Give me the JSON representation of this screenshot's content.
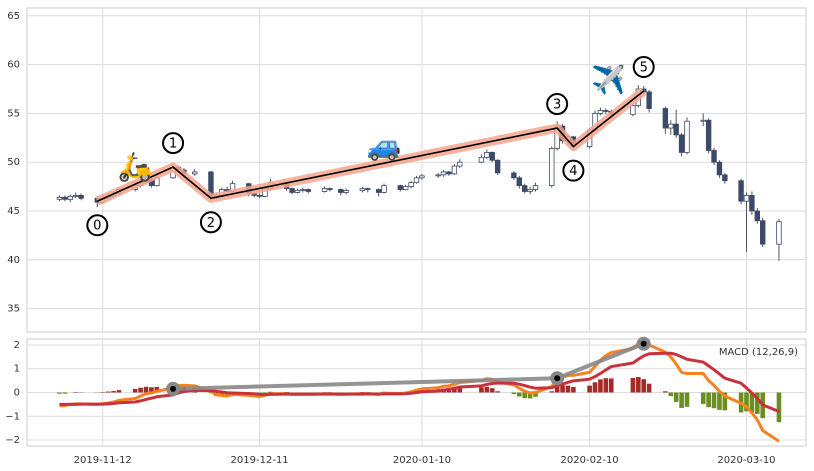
{
  "chart_data": [
    {
      "type": "candlestick",
      "x": [
        "2019-11-04",
        "2019-11-05",
        "2019-11-06",
        "2019-11-07",
        "2019-11-08",
        "2019-11-11",
        "2019-11-12",
        "2019-11-13",
        "2019-11-14",
        "2019-11-15",
        "2019-11-18",
        "2019-11-19",
        "2019-11-20",
        "2019-11-21",
        "2019-11-22",
        "2019-11-25",
        "2019-11-26",
        "2019-11-27",
        "2019-11-29",
        "2019-12-02",
        "2019-12-03",
        "2019-12-04",
        "2019-12-05",
        "2019-12-06",
        "2019-12-09",
        "2019-12-10",
        "2019-12-11",
        "2019-12-12",
        "2019-12-13",
        "2019-12-16",
        "2019-12-17",
        "2019-12-18",
        "2019-12-19",
        "2019-12-20",
        "2019-12-23",
        "2019-12-24",
        "2019-12-26",
        "2019-12-27",
        "2019-12-30",
        "2019-12-31",
        "2020-01-02",
        "2020-01-03",
        "2020-01-06",
        "2020-01-07",
        "2020-01-08",
        "2020-01-09",
        "2020-01-10",
        "2020-01-13",
        "2020-01-14",
        "2020-01-15",
        "2020-01-16",
        "2020-01-17",
        "2020-01-21",
        "2020-01-22",
        "2020-01-23",
        "2020-01-24",
        "2020-01-27",
        "2020-01-28",
        "2020-01-29",
        "2020-01-30",
        "2020-01-31",
        "2020-02-03",
        "2020-02-04",
        "2020-02-05",
        "2020-02-06",
        "2020-02-07",
        "2020-02-10",
        "2020-02-11",
        "2020-02-12",
        "2020-02-13",
        "2020-02-14",
        "2020-02-18",
        "2020-02-19",
        "2020-02-20",
        "2020-02-21",
        "2020-02-24",
        "2020-02-25",
        "2020-02-26",
        "2020-02-27",
        "2020-02-28",
        "2020-03-02",
        "2020-03-03",
        "2020-03-04",
        "2020-03-05",
        "2020-03-06",
        "2020-03-09",
        "2020-03-10",
        "2020-03-11",
        "2020-03-12",
        "2020-03-13",
        "2020-03-16"
      ],
      "ohlc": [
        [
          46.2,
          46.6,
          46.0,
          46.4
        ],
        [
          46.4,
          46.6,
          46.0,
          46.2
        ],
        [
          46.2,
          46.7,
          45.9,
          46.5
        ],
        [
          46.5,
          46.9,
          46.3,
          46.6
        ],
        [
          46.6,
          46.8,
          46.1,
          46.3
        ],
        [
          46.3,
          46.5,
          45.4,
          45.9
        ],
        [
          45.9,
          46.6,
          45.7,
          46.3
        ],
        [
          46.3,
          46.8,
          46.2,
          46.5
        ],
        [
          46.5,
          47.0,
          46.3,
          46.8
        ],
        [
          46.8,
          47.4,
          46.6,
          47.2
        ],
        [
          47.2,
          47.8,
          47.0,
          47.6
        ],
        [
          47.6,
          48.3,
          47.4,
          47.9
        ],
        [
          47.9,
          48.5,
          47.7,
          48.2
        ],
        [
          48.2,
          48.4,
          47.4,
          47.6
        ],
        [
          47.6,
          48.6,
          47.5,
          48.4
        ],
        [
          48.4,
          49.8,
          48.3,
          49.5
        ],
        [
          49.5,
          49.6,
          48.9,
          49.2
        ],
        [
          49.2,
          49.4,
          48.5,
          48.8
        ],
        [
          48.8,
          49.3,
          48.6,
          49.0
        ],
        [
          49.0,
          49.1,
          46.1,
          46.4
        ],
        [
          46.4,
          46.9,
          46.2,
          46.6
        ],
        [
          46.6,
          47.4,
          46.4,
          47.2
        ],
        [
          47.2,
          47.5,
          46.8,
          47.0
        ],
        [
          47.0,
          48.1,
          46.9,
          47.8
        ],
        [
          47.8,
          47.9,
          46.5,
          46.8
        ],
        [
          46.8,
          47.0,
          46.4,
          46.6
        ],
        [
          46.6,
          46.8,
          46.3,
          46.5
        ],
        [
          46.5,
          47.6,
          46.4,
          47.3
        ],
        [
          47.3,
          48.3,
          47.1,
          47.9
        ],
        [
          47.9,
          48.0,
          47.1,
          47.3
        ],
        [
          47.3,
          47.4,
          46.7,
          46.9
        ],
        [
          46.9,
          47.3,
          46.8,
          47.1
        ],
        [
          47.1,
          47.4,
          46.9,
          47.2
        ],
        [
          47.2,
          47.3,
          46.8,
          47.0
        ],
        [
          47.0,
          47.5,
          46.9,
          47.3
        ],
        [
          47.3,
          47.4,
          47.0,
          47.2
        ],
        [
          47.2,
          47.3,
          46.6,
          46.9
        ],
        [
          46.9,
          47.3,
          46.7,
          47.1
        ],
        [
          47.1,
          47.5,
          46.9,
          47.3
        ],
        [
          47.3,
          47.4,
          46.9,
          47.2
        ],
        [
          47.2,
          47.3,
          46.5,
          46.9
        ],
        [
          46.9,
          47.8,
          46.8,
          47.6
        ],
        [
          47.6,
          47.7,
          47.0,
          47.2
        ],
        [
          47.2,
          47.7,
          47.1,
          47.5
        ],
        [
          47.5,
          48.1,
          47.3,
          47.9
        ],
        [
          47.9,
          48.6,
          47.8,
          48.4
        ],
        [
          48.4,
          48.8,
          48.2,
          48.6
        ],
        [
          48.6,
          48.9,
          48.4,
          48.7
        ],
        [
          48.7,
          49.2,
          48.5,
          49.0
        ],
        [
          49.0,
          49.1,
          48.6,
          48.8
        ],
        [
          48.8,
          49.8,
          48.7,
          49.6
        ],
        [
          49.6,
          50.3,
          49.4,
          50.0
        ],
        [
          50.0,
          50.8,
          49.9,
          50.5
        ],
        [
          50.5,
          51.3,
          50.3,
          51.0
        ],
        [
          51.0,
          51.1,
          50.0,
          50.2
        ],
        [
          50.2,
          50.3,
          48.7,
          48.9
        ],
        [
          48.9,
          49.1,
          48.2,
          48.4
        ],
        [
          48.4,
          48.6,
          47.3,
          47.6
        ],
        [
          47.6,
          47.8,
          46.8,
          47.0
        ],
        [
          47.0,
          47.5,
          46.7,
          47.2
        ],
        [
          47.2,
          47.9,
          47.0,
          47.6
        ],
        [
          47.6,
          51.6,
          47.4,
          51.4
        ],
        [
          51.4,
          54.2,
          51.2,
          53.7
        ],
        [
          53.7,
          53.9,
          51.9,
          52.2
        ],
        [
          52.2,
          52.9,
          51.8,
          52.6
        ],
        [
          52.6,
          52.7,
          51.3,
          51.6
        ],
        [
          51.6,
          53.5,
          51.4,
          53.3
        ],
        [
          53.3,
          55.3,
          53.1,
          55.0
        ],
        [
          55.0,
          55.6,
          54.8,
          55.3
        ],
        [
          55.3,
          55.5,
          54.9,
          55.2
        ],
        [
          55.2,
          55.4,
          54.6,
          54.9
        ],
        [
          54.9,
          56.0,
          54.7,
          55.8
        ],
        [
          55.8,
          57.9,
          55.6,
          57.5
        ],
        [
          57.5,
          57.8,
          56.9,
          57.2
        ],
        [
          57.2,
          57.4,
          55.1,
          55.5
        ],
        [
          55.5,
          55.7,
          52.9,
          53.5
        ],
        [
          53.5,
          54.3,
          52.8,
          53.9
        ],
        [
          53.9,
          55.4,
          52.5,
          52.8
        ],
        [
          52.8,
          53.0,
          50.6,
          51.0
        ],
        [
          51.0,
          54.6,
          50.8,
          54.2
        ],
        [
          54.2,
          55.0,
          53.7,
          54.3
        ],
        [
          54.3,
          54.5,
          50.9,
          51.2
        ],
        [
          51.2,
          51.5,
          49.7,
          50.0
        ],
        [
          50.0,
          50.2,
          48.4,
          48.7
        ],
        [
          48.7,
          48.9,
          47.8,
          48.1
        ],
        [
          48.1,
          48.3,
          45.7,
          46.0
        ],
        [
          46.0,
          46.9,
          40.8,
          46.6
        ],
        [
          46.6,
          47.0,
          44.6,
          45.0
        ],
        [
          45.0,
          45.3,
          43.7,
          44.0
        ],
        [
          44.0,
          44.3,
          41.3,
          41.6
        ],
        [
          41.6,
          44.2,
          39.9,
          43.9
        ]
      ],
      "up_color": "#ffffff",
      "down_color": "#3b4a68",
      "edge_color": "#3b4a68",
      "xlim": [
        "2019-10-29",
        "2020-03-21"
      ],
      "xticks": [
        "2019-11-12",
        "2019-12-11",
        "2020-01-10",
        "2020-02-10",
        "2020-03-10"
      ],
      "ylim": [
        32.6,
        65.8
      ],
      "yticks": [
        35,
        40,
        45,
        50,
        55,
        60,
        65
      ],
      "grid": true,
      "pattern": {
        "x": [
          "2019-11-11",
          "2019-11-25",
          "2019-12-02",
          "2020-02-04",
          "2020-02-07",
          "2020-02-20"
        ],
        "values": [
          46.0,
          49.5,
          46.3,
          53.5,
          51.6,
          57.3
        ],
        "labels": [
          "0",
          "1",
          "2",
          "3",
          "4",
          "5"
        ],
        "color": "#000000",
        "glow_color": "#f4a48c"
      },
      "icons": [
        "🛵",
        "🚙",
        "✈️"
      ]
    },
    {
      "type": "macd",
      "label": "MACD (12,26,9)",
      "series": [
        {
          "color": "#f58220",
          "values": [
            -0.55,
            -0.55,
            -0.5,
            -0.48,
            -0.48,
            -0.5,
            -0.47,
            -0.44,
            -0.4,
            -0.33,
            -0.25,
            -0.15,
            -0.05,
            -0.02,
            0.05,
            0.2,
            0.3,
            0.3,
            0.28,
            0.05,
            -0.1,
            -0.12,
            -0.15,
            -0.08,
            -0.12,
            -0.15,
            -0.17,
            -0.12,
            -0.05,
            -0.05,
            -0.08,
            -0.08,
            -0.07,
            -0.08,
            -0.06,
            -0.06,
            -0.08,
            -0.07,
            -0.05,
            -0.05,
            -0.08,
            -0.03,
            -0.04,
            -0.02,
            0.03,
            0.1,
            0.15,
            0.2,
            0.26,
            0.28,
            0.35,
            0.42,
            0.5,
            0.58,
            0.56,
            0.45,
            0.32,
            0.18,
            0.05,
            -0.02,
            0.0,
            0.25,
            0.58,
            0.65,
            0.72,
            0.72,
            0.85,
            1.1,
            1.35,
            1.55,
            1.68,
            1.85,
            2.05,
            2.1,
            2.0,
            1.7,
            1.5,
            1.2,
            0.85,
            0.8,
            0.8,
            0.5,
            0.3,
            0.05,
            -0.15,
            -0.45,
            -0.6,
            -0.85,
            -1.15,
            -1.6,
            -2.05
          ]
        },
        {
          "color": "#c8323c",
          "values": [
            -0.5,
            -0.5,
            -0.5,
            -0.5,
            -0.49,
            -0.49,
            -0.49,
            -0.48,
            -0.46,
            -0.43,
            -0.4,
            -0.35,
            -0.29,
            -0.24,
            -0.18,
            -0.1,
            -0.02,
            0.04,
            0.09,
            0.08,
            0.05,
            0.02,
            -0.01,
            -0.02,
            -0.04,
            -0.06,
            -0.08,
            -0.09,
            -0.08,
            -0.07,
            -0.07,
            -0.07,
            -0.07,
            -0.07,
            -0.07,
            -0.07,
            -0.07,
            -0.07,
            -0.07,
            -0.06,
            -0.07,
            -0.06,
            -0.06,
            -0.05,
            -0.03,
            0.0,
            0.03,
            0.06,
            0.1,
            0.14,
            0.18,
            0.23,
            0.28,
            0.34,
            0.38,
            0.4,
            0.39,
            0.35,
            0.29,
            0.23,
            0.18,
            0.2,
            0.28,
            0.35,
            0.43,
            0.49,
            0.56,
            0.67,
            0.8,
            0.95,
            1.09,
            1.24,
            1.4,
            1.54,
            1.63,
            1.65,
            1.65,
            1.6,
            1.5,
            1.4,
            1.28,
            1.12,
            0.96,
            0.78,
            0.6,
            0.39,
            0.19,
            -0.02,
            -0.25,
            -0.52,
            -0.8
          ]
        }
      ],
      "histogram": {
        "pos_color": "#a52a2a",
        "neg_color": "#6b8e23",
        "values": [
          -0.05,
          -0.05,
          0.0,
          0.02,
          0.01,
          -0.01,
          0.02,
          0.04,
          0.06,
          0.1,
          0.15,
          0.2,
          0.24,
          0.22,
          0.23,
          0.3,
          0.32,
          0.26,
          0.19,
          -0.03,
          -0.15,
          -0.14,
          -0.14,
          -0.06,
          -0.08,
          -0.09,
          -0.09,
          -0.03,
          0.03,
          0.02,
          -0.01,
          -0.01,
          0.0,
          -0.01,
          0.01,
          0.01,
          -0.01,
          0.0,
          0.02,
          0.01,
          -0.01,
          0.03,
          0.02,
          0.03,
          0.06,
          0.1,
          0.12,
          0.14,
          0.16,
          0.14,
          0.17,
          0.19,
          0.22,
          0.24,
          0.18,
          0.05,
          -0.07,
          -0.17,
          -0.24,
          -0.25,
          -0.18,
          0.05,
          0.3,
          0.3,
          0.29,
          0.23,
          0.29,
          0.43,
          0.55,
          0.6,
          0.59,
          0.61,
          0.65,
          0.56,
          0.37,
          0.05,
          -0.15,
          -0.4,
          -0.65,
          -0.6,
          -0.48,
          -0.62,
          -0.66,
          -0.73,
          -0.75,
          -0.84,
          -0.79,
          -0.83,
          -0.9,
          -1.08,
          -1.25
        ]
      },
      "pattern": {
        "x": [
          "2019-11-25",
          "2020-02-04",
          "2020-02-20"
        ],
        "values": [
          0.15,
          0.6,
          2.05
        ],
        "color": "#888888"
      },
      "xlim": [
        "2019-10-29",
        "2020-03-21"
      ],
      "xticks": [
        "2019-11-12",
        "2019-12-11",
        "2020-01-10",
        "2020-02-10",
        "2020-03-10"
      ],
      "ylim": [
        -2.25,
        2.25
      ],
      "yticks": [
        {
          "value": -2,
          "label": "−2"
        },
        {
          "value": -1,
          "label": "−1"
        },
        0,
        1,
        2
      ],
      "grid": true
    }
  ]
}
